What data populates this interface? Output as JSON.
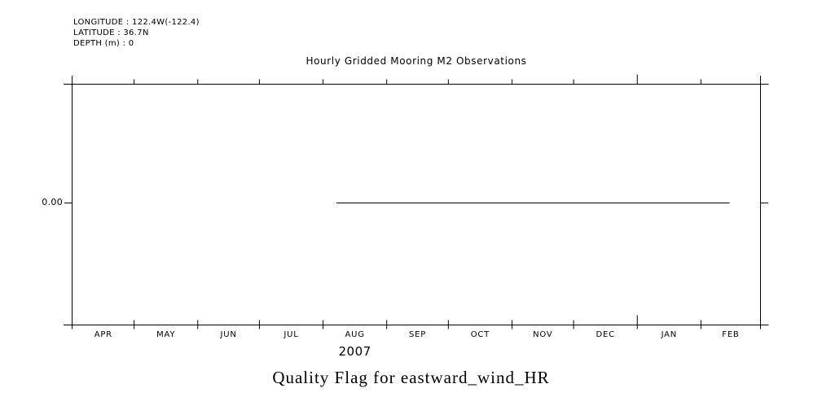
{
  "header": {
    "longitude": "LONGITUDE : 122.4W(-122.4)",
    "latitude": "LATITUDE : 36.7N",
    "depth": "DEPTH (m) : 0"
  },
  "chart_data": {
    "type": "line",
    "title": "Hourly Gridded Mooring M2 Observations",
    "bottom_title": "Quality Flag for eastward_wind_HR",
    "x_axis": {
      "start_date": "2007-04-01",
      "end_date": "2008-03-01",
      "months": [
        "APR",
        "MAY",
        "JUN",
        "JUL",
        "AUG",
        "SEP",
        "OCT",
        "NOV",
        "DEC",
        "JAN",
        "FEB"
      ],
      "month_lengths_days": [
        30,
        31,
        30,
        31,
        31,
        30,
        31,
        30,
        31,
        31,
        29
      ],
      "year_label": "2007",
      "year_boundary_index": 9,
      "grid": false
    },
    "y_axis": {
      "ticks": [
        {
          "label": "0.00",
          "value": 0.0
        }
      ]
    },
    "series": [
      {
        "name": "quality_flag",
        "variable": "eastward_wind_HR",
        "value": 0.0,
        "start_date": "2007-08-07",
        "end_date": "2008-02-15",
        "start_day_offset": 128.5,
        "end_day_offset": 320
      }
    ],
    "legend": null,
    "colors": {
      "background": "#ffffff",
      "axis": "#000000",
      "line": "#000000",
      "text": "#000000"
    }
  }
}
